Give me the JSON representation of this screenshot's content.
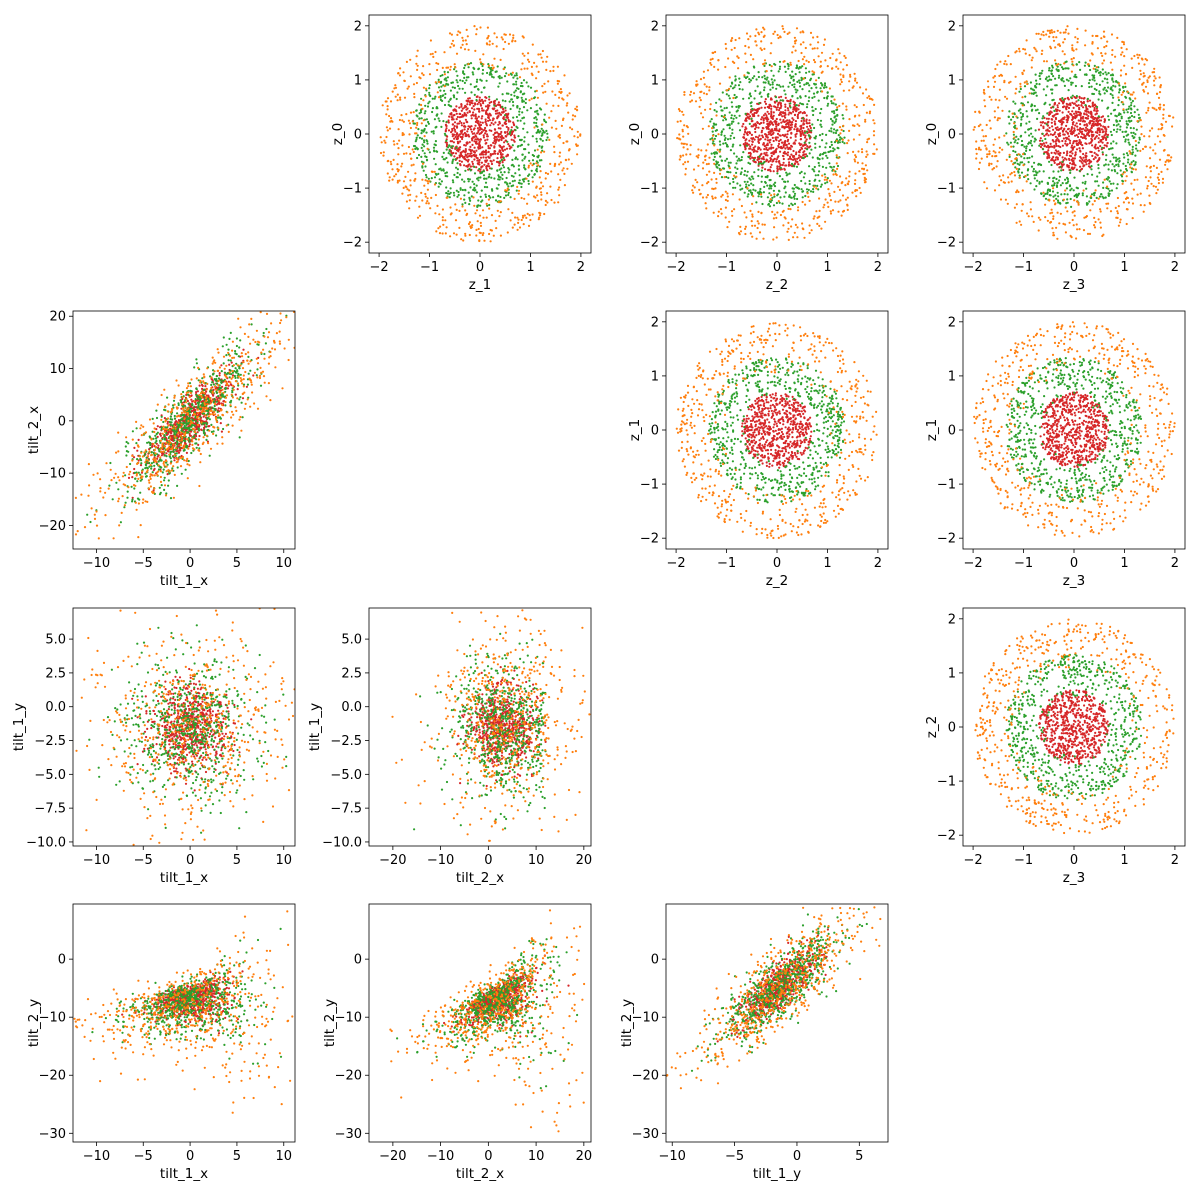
{
  "colors": {
    "outer": "#d62728",
    "middle": "#2ca02c",
    "inner": "#ff7f0e",
    "axis": "#000000"
  },
  "chart_data": [
    {
      "type": "scatter",
      "name": "z_0 vs z_1",
      "xlabel": "z_1",
      "ylabel": "z_0",
      "xlim": [
        -2.2,
        2.2
      ],
      "ylim": [
        -2.2,
        2.2
      ],
      "xticks": [
        -2,
        -1,
        0,
        1,
        2
      ],
      "xticklabels": [
        "−2",
        "−1",
        "0",
        "1",
        "2"
      ],
      "yticks": [
        -2,
        -1,
        0,
        1,
        2
      ],
      "yticklabels": [
        "−2",
        "−1",
        "0",
        "1",
        "2"
      ],
      "kind": "ring",
      "radii": [
        0.7,
        1.35,
        2.0
      ]
    },
    {
      "type": "scatter",
      "name": "z_0 vs z_2",
      "xlabel": "z_2",
      "ylabel": "z_0",
      "xlim": [
        -2.2,
        2.2
      ],
      "ylim": [
        -2.2,
        2.2
      ],
      "xticks": [
        -2,
        -1,
        0,
        1,
        2
      ],
      "xticklabels": [
        "−2",
        "−1",
        "0",
        "1",
        "2"
      ],
      "yticks": [
        -2,
        -1,
        0,
        1,
        2
      ],
      "yticklabels": [
        "−2",
        "−1",
        "0",
        "1",
        "2"
      ],
      "kind": "ring",
      "radii": [
        0.7,
        1.35,
        2.0
      ]
    },
    {
      "type": "scatter",
      "name": "z_0 vs z_3",
      "xlabel": "z_3",
      "ylabel": "z_0",
      "xlim": [
        -2.2,
        2.2
      ],
      "ylim": [
        -2.2,
        2.2
      ],
      "xticks": [
        -2,
        -1,
        0,
        1,
        2
      ],
      "xticklabels": [
        "−2",
        "−1",
        "0",
        "1",
        "2"
      ],
      "yticks": [
        -2,
        -1,
        0,
        1,
        2
      ],
      "yticklabels": [
        "−2",
        "−1",
        "0",
        "1",
        "2"
      ],
      "kind": "ring",
      "radii": [
        0.7,
        1.35,
        2.0
      ]
    },
    {
      "type": "scatter",
      "name": "tilt_2_x vs tilt_1_x",
      "xlabel": "tilt_1_x",
      "ylabel": "tilt_2_x",
      "xlim": [
        -12.5,
        11.2
      ],
      "ylim": [
        -24.5,
        21
      ],
      "xticks": [
        -10,
        -5,
        0,
        5,
        10
      ],
      "xticklabels": [
        "−10",
        "−5",
        "0",
        "5",
        "10"
      ],
      "yticks": [
        -20,
        -10,
        0,
        10,
        20
      ],
      "yticklabels": [
        "−20",
        "−10",
        "0",
        "10",
        "20"
      ],
      "kind": "linear",
      "slope": 1.6,
      "spread": [
        3.0,
        4.5,
        6.0
      ],
      "xspread": [
        2.2,
        3.5,
        5.5
      ]
    },
    {
      "type": "scatter",
      "name": "z_1 vs z_2",
      "xlabel": "z_2",
      "ylabel": "z_1",
      "xlim": [
        -2.2,
        2.2
      ],
      "ylim": [
        -2.2,
        2.2
      ],
      "xticks": [
        -2,
        -1,
        0,
        1,
        2
      ],
      "xticklabels": [
        "−2",
        "−1",
        "0",
        "1",
        "2"
      ],
      "yticks": [
        -2,
        -1,
        0,
        1,
        2
      ],
      "yticklabels": [
        "−2",
        "−1",
        "0",
        "1",
        "2"
      ],
      "kind": "ring",
      "radii": [
        0.7,
        1.35,
        2.0
      ]
    },
    {
      "type": "scatter",
      "name": "z_1 vs z_3",
      "xlabel": "z_3",
      "ylabel": "z_1",
      "xlim": [
        -2.2,
        2.2
      ],
      "ylim": [
        -2.2,
        2.2
      ],
      "xticks": [
        -2,
        -1,
        0,
        1,
        2
      ],
      "xticklabels": [
        "−2",
        "−1",
        "0",
        "1",
        "2"
      ],
      "yticks": [
        -2,
        -1,
        0,
        1,
        2
      ],
      "yticklabels": [
        "−2",
        "−1",
        "0",
        "1",
        "2"
      ],
      "kind": "ring",
      "radii": [
        0.7,
        1.35,
        2.0
      ]
    },
    {
      "type": "scatter",
      "name": "tilt_1_y vs tilt_1_x",
      "xlabel": "tilt_1_x",
      "ylabel": "tilt_1_y",
      "xlim": [
        -12.5,
        11.2
      ],
      "ylim": [
        -10.3,
        7.3
      ],
      "xticks": [
        -10,
        -5,
        0,
        5,
        10
      ],
      "xticklabels": [
        "−10",
        "−5",
        "0",
        "5",
        "10"
      ],
      "yticks": [
        -10,
        -7.5,
        -5,
        -2.5,
        0,
        2.5,
        5
      ],
      "yticklabels": [
        "−10.0",
        "−7.5",
        "−5.0",
        "−2.5",
        "0.0",
        "2.5",
        "5.0"
      ],
      "kind": "blob",
      "center": [
        0,
        -1.5
      ],
      "sx": [
        2.0,
        3.5,
        5.5
      ],
      "sy": [
        1.5,
        2.5,
        3.8
      ]
    },
    {
      "type": "scatter",
      "name": "tilt_1_y vs tilt_2_x",
      "xlabel": "tilt_2_x",
      "ylabel": "tilt_1_y",
      "xlim": [
        -25,
        21.5
      ],
      "ylim": [
        -10.3,
        7.3
      ],
      "xticks": [
        -20,
        -10,
        0,
        10,
        20
      ],
      "xticklabels": [
        "−20",
        "−10",
        "0",
        "10",
        "20"
      ],
      "yticks": [
        -10,
        -7.5,
        -5,
        -2.5,
        0,
        2.5,
        5
      ],
      "yticklabels": [
        "−10.0",
        "−7.5",
        "−5.0",
        "−2.5",
        "0.0",
        "2.5",
        "5.0"
      ],
      "kind": "blob",
      "center": [
        3,
        -1.5
      ],
      "sx": [
        3.5,
        5.5,
        8.0
      ],
      "sy": [
        1.5,
        2.5,
        3.8
      ],
      "xmax": 12
    },
    {
      "type": "scatter",
      "name": "z_2 vs z_3",
      "xlabel": "z_3",
      "ylabel": "z_2",
      "xlim": [
        -2.2,
        2.2
      ],
      "ylim": [
        -2.2,
        2.2
      ],
      "xticks": [
        -2,
        -1,
        0,
        1,
        2
      ],
      "xticklabels": [
        "−2",
        "−1",
        "0",
        "1",
        "2"
      ],
      "yticks": [
        -2,
        -1,
        0,
        1,
        2
      ],
      "yticklabels": [
        "−2",
        "−1",
        "0",
        "1",
        "2"
      ],
      "kind": "ring",
      "radii": [
        0.7,
        1.35,
        2.0
      ]
    },
    {
      "type": "scatter",
      "name": "tilt_2_y vs tilt_1_x",
      "xlabel": "tilt_1_x",
      "ylabel": "tilt_2_y",
      "xlim": [
        -12.5,
        11.2
      ],
      "ylim": [
        -31.5,
        9.5
      ],
      "xticks": [
        -10,
        -5,
        0,
        5,
        10
      ],
      "xticklabels": [
        "−10",
        "−5",
        "0",
        "5",
        "10"
      ],
      "yticks": [
        -30,
        -20,
        -10,
        0
      ],
      "yticklabels": [
        "−30",
        "−20",
        "−10",
        "0"
      ],
      "kind": "fan",
      "center": [
        0,
        -6
      ],
      "sx": [
        2.0,
        3.5,
        5.5
      ],
      "sy": [
        3.0,
        5.0,
        7.5
      ]
    },
    {
      "type": "scatter",
      "name": "tilt_2_y vs tilt_2_x",
      "xlabel": "tilt_2_x",
      "ylabel": "tilt_2_y",
      "xlim": [
        -25,
        21.5
      ],
      "ylim": [
        -31.5,
        9.5
      ],
      "xticks": [
        -20,
        -10,
        0,
        10,
        20
      ],
      "xticklabels": [
        "−20",
        "−10",
        "0",
        "10",
        "20"
      ],
      "yticks": [
        -30,
        -20,
        -10,
        0
      ],
      "yticklabels": [
        "−30",
        "−20",
        "−10",
        "0"
      ],
      "kind": "fan",
      "center": [
        2,
        -6
      ],
      "sx": [
        3.5,
        5.5,
        8.0
      ],
      "sy": [
        3.0,
        5.0,
        7.5
      ]
    },
    {
      "type": "scatter",
      "name": "tilt_2_y vs tilt_1_y",
      "xlabel": "tilt_1_y",
      "ylabel": "tilt_2_y",
      "xlim": [
        -10.5,
        7.3
      ],
      "ylim": [
        -31.5,
        9.5
      ],
      "xticks": [
        -10,
        -5,
        0,
        5
      ],
      "xticklabels": [
        "−10",
        "−5",
        "0",
        "5"
      ],
      "yticks": [
        -30,
        -20,
        -10,
        0
      ],
      "yticklabels": [
        "−30",
        "−20",
        "−10",
        "0"
      ],
      "kind": "linear",
      "slope": 1.6,
      "spread": [
        2.5,
        3.5,
        4.5
      ],
      "xspread": [
        1.5,
        2.3,
        3.5
      ],
      "offset": [
        -1.5,
        -5
      ]
    }
  ]
}
